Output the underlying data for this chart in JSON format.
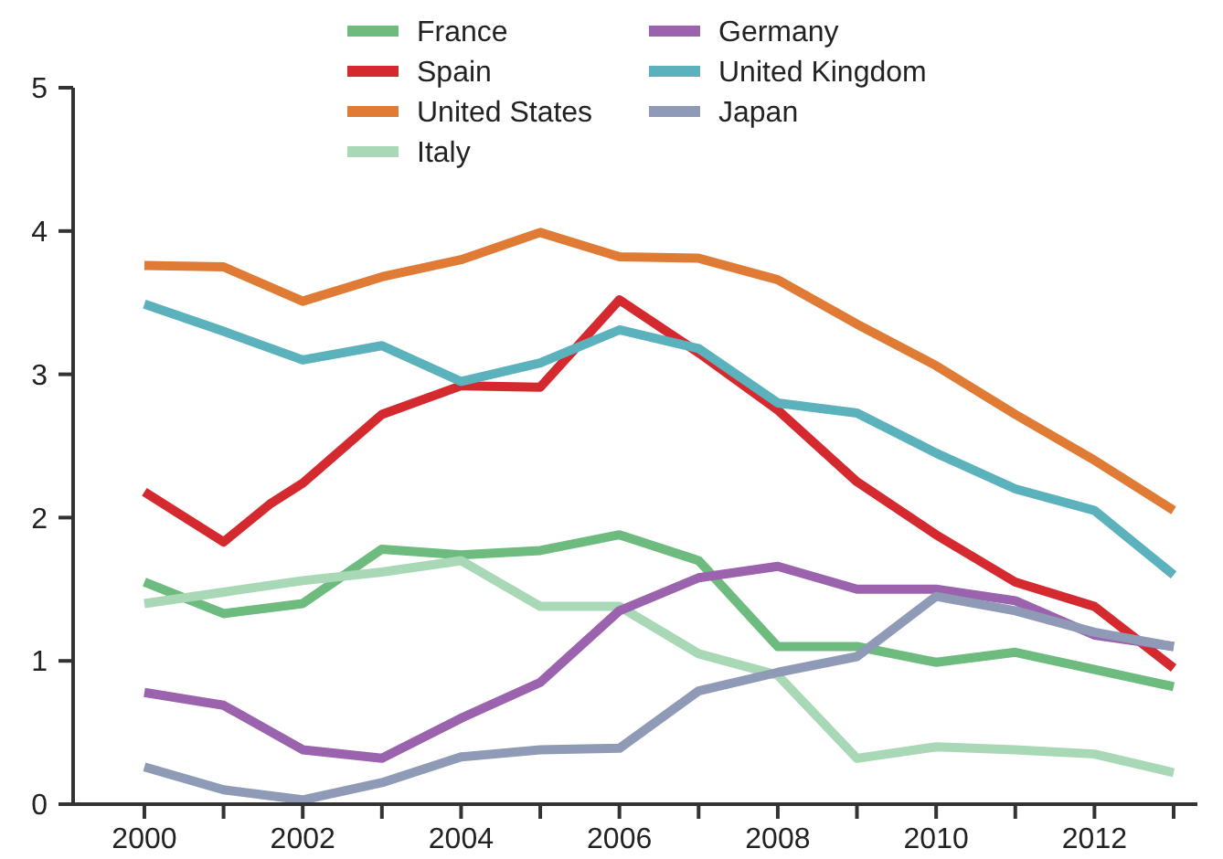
{
  "chart_data": {
    "type": "line",
    "x": [
      2000,
      2001,
      2002,
      2003,
      2004,
      2005,
      2006,
      2007,
      2008,
      2009,
      2010,
      2011,
      2012,
      2013
    ],
    "series": [
      {
        "name": "France",
        "color": "#6dbb7f",
        "values": [
          1.55,
          1.33,
          1.4,
          1.78,
          1.74,
          1.77,
          1.88,
          1.7,
          1.1,
          1.1,
          0.99,
          1.06,
          0.94,
          0.82
        ]
      },
      {
        "name": "Spain",
        "color": "#d42a2f",
        "x": [
          2000,
          2001,
          2001.6,
          2002,
          2003,
          2004,
          2005,
          2006,
          2007,
          2008,
          2009,
          2010,
          2011,
          2012,
          2013
        ],
        "values": [
          2.18,
          1.83,
          2.1,
          2.24,
          2.72,
          2.92,
          2.91,
          3.52,
          3.15,
          2.75,
          2.25,
          1.88,
          1.55,
          1.38,
          0.95
        ]
      },
      {
        "name": "United States",
        "color": "#e07b35",
        "values": [
          3.76,
          3.75,
          3.51,
          3.68,
          3.8,
          3.99,
          3.82,
          3.81,
          3.66,
          3.35,
          3.06,
          2.72,
          2.4,
          2.05
        ]
      },
      {
        "name": "Italy",
        "color": "#a8d8b5",
        "values": [
          1.4,
          1.48,
          1.56,
          1.62,
          1.7,
          1.38,
          1.38,
          1.05,
          0.9,
          0.32,
          0.4,
          0.38,
          0.35,
          0.22
        ]
      },
      {
        "name": "Germany",
        "color": "#9b62ad",
        "values": [
          0.78,
          0.69,
          0.38,
          0.32,
          0.6,
          0.85,
          1.35,
          1.58,
          1.66,
          1.5,
          1.5,
          1.42,
          1.18,
          1.1
        ]
      },
      {
        "name": "United Kingdom",
        "color": "#5bb2bd",
        "values": [
          3.49,
          3.3,
          3.1,
          3.2,
          2.95,
          3.08,
          3.31,
          3.18,
          2.8,
          2.73,
          2.45,
          2.2,
          2.05,
          1.6
        ]
      },
      {
        "name": "Japan",
        "color": "#8e9ab6",
        "values": [
          0.26,
          0.1,
          0.03,
          0.15,
          0.33,
          0.38,
          0.39,
          0.79,
          0.92,
          1.03,
          1.45,
          1.35,
          1.2,
          1.1
        ]
      }
    ],
    "xlim": [
      1999.1,
      2013.3
    ],
    "xticks": [
      2000,
      {
        "value": 2001,
        "label": null
      },
      2002,
      {
        "value": 2003,
        "label": null
      },
      2004,
      {
        "value": 2005,
        "label": null
      },
      2006,
      {
        "value": 2007,
        "label": null
      },
      2008,
      {
        "value": 2009,
        "label": null
      },
      2010,
      {
        "value": 2011,
        "label": null
      },
      2012,
      {
        "value": 2013,
        "label": null
      }
    ],
    "ylim": [
      0,
      5
    ],
    "yticks": [
      0,
      1,
      2,
      3,
      4,
      5
    ],
    "grid": false,
    "legend": "top",
    "marker": "none",
    "line_style": "solid"
  }
}
